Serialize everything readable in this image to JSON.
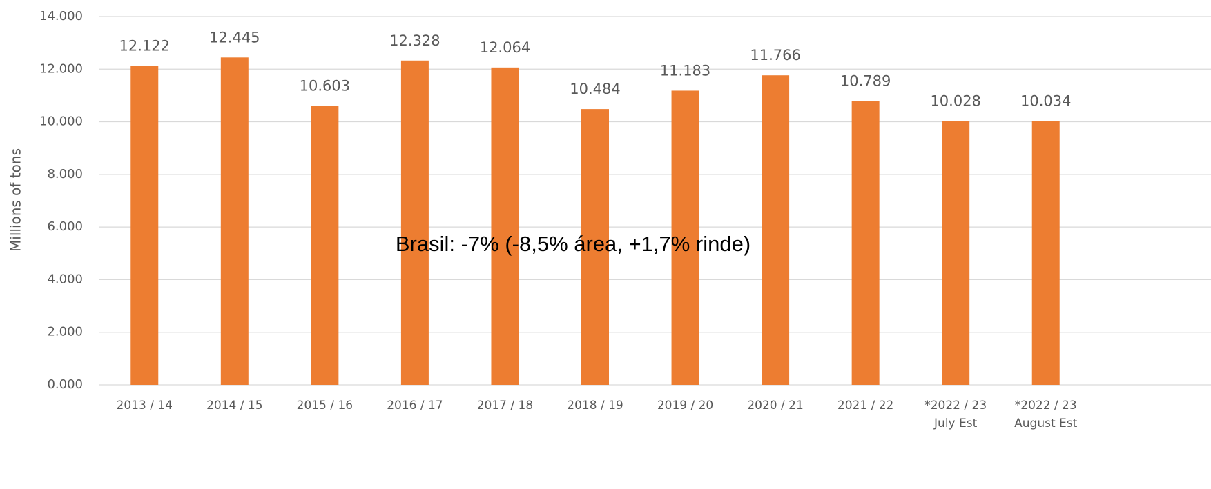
{
  "chart_data": {
    "type": "bar",
    "y_axis_label": "Millions of tons",
    "annotation": "Brasil: -7% (-8,5% área, +1,7% rinde)",
    "categories": [
      "2013 / 14",
      "2014 / 15",
      "2015 / 16",
      "2016 / 17",
      "2017 / 18",
      "2018 / 19",
      "2019 / 20",
      "2020 / 21",
      "2021 / 22",
      "*2022 / 23\nJuly Est",
      "*2022 / 23\nAugust Est"
    ],
    "values": [
      12.122,
      12.445,
      10.603,
      12.328,
      12.064,
      10.484,
      11.183,
      11.766,
      10.789,
      10.028,
      10.034
    ],
    "color": "#ed7d31",
    "ylim": [
      0,
      14
    ],
    "yticks": [
      {
        "value": 0,
        "label": "0.000"
      },
      {
        "value": 2,
        "label": "2.000"
      },
      {
        "value": 4,
        "label": "4.000"
      },
      {
        "value": 6,
        "label": "6.000"
      },
      {
        "value": 8,
        "label": "8.000"
      },
      {
        "value": 10,
        "label": "10.000"
      },
      {
        "value": 12,
        "label": "12.000"
      },
      {
        "value": 14,
        "label": "14.000"
      }
    ],
    "grid": true
  }
}
